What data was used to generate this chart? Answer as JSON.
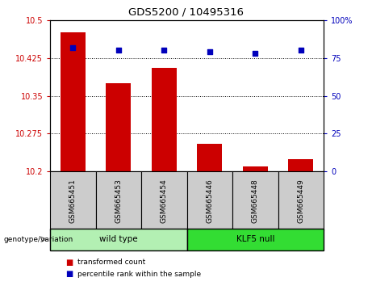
{
  "title": "GDS5200 / 10495316",
  "samples": [
    "GSM665451",
    "GSM665453",
    "GSM665454",
    "GSM665446",
    "GSM665448",
    "GSM665449"
  ],
  "bar_values": [
    10.475,
    10.375,
    10.405,
    10.255,
    10.21,
    10.225
  ],
  "percentile_values": [
    82,
    80,
    80,
    79,
    78,
    80
  ],
  "ylim_left": [
    10.2,
    10.5
  ],
  "ylim_right": [
    0,
    100
  ],
  "yticks_left": [
    10.2,
    10.275,
    10.35,
    10.425,
    10.5
  ],
  "ytick_labels_left": [
    "10.2",
    "10.275",
    "10.35",
    "10.425",
    "10.5"
  ],
  "yticks_right": [
    0,
    25,
    50,
    75,
    100
  ],
  "ytick_labels_right": [
    "0",
    "25",
    "50",
    "75",
    "100%"
  ],
  "bar_color": "#cc0000",
  "dot_color": "#0000bb",
  "wild_type_label": "wild type",
  "klf5_null_label": "KLF5 null",
  "genotype_label": "genotype/variation",
  "legend_bar": "transformed count",
  "legend_dot": "percentile rank within the sample",
  "sample_bg": "#cccccc",
  "wild_type_bg": "#b3f0b3",
  "klf5_null_bg": "#33dd33",
  "n_wild": 3,
  "n_klf": 3
}
